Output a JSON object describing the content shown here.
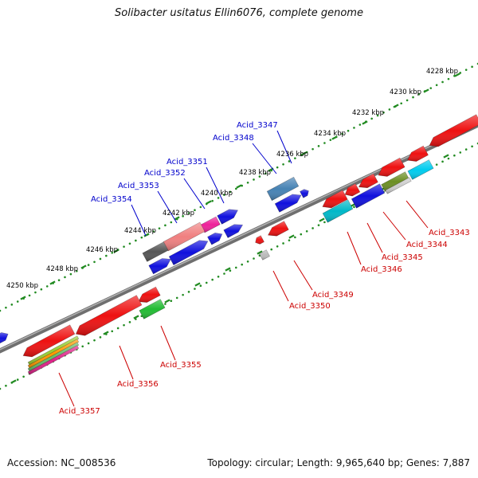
{
  "title": "Solibacter usitatus Ellin6076, complete genome",
  "footer": {
    "accession": "Accession: NC_008536",
    "summary": "Topology: circular; Length: 9,965,640 bp; Genes: 7,887"
  },
  "colors": {
    "backbone": "#808080",
    "tick_track": "#228b22",
    "forward_label": "#0000cc",
    "reverse_label": "#cc0000"
  },
  "scale_ticks": [
    {
      "label": "4228 kbp"
    },
    {
      "label": "4230 kbp"
    },
    {
      "label": "4232 kbp"
    },
    {
      "label": "4234 kbp"
    },
    {
      "label": "4236 kbp"
    },
    {
      "label": "4238 kbp"
    },
    {
      "label": "4240 kbp"
    },
    {
      "label": "4242 kbp"
    },
    {
      "label": "4244 kbp"
    },
    {
      "label": "4246 kbp"
    },
    {
      "label": "4248 kbp"
    },
    {
      "label": "4250 kbp"
    }
  ],
  "gene_labels_forward": [
    {
      "name": "Acid_3347"
    },
    {
      "name": "Acid_3348"
    },
    {
      "name": "Acid_3351"
    },
    {
      "name": "Acid_3352"
    },
    {
      "name": "Acid_3353"
    },
    {
      "name": "Acid_3354"
    }
  ],
  "gene_labels_reverse": [
    {
      "name": "Acid_3343"
    },
    {
      "name": "Acid_3344"
    },
    {
      "name": "Acid_3345"
    },
    {
      "name": "Acid_3346"
    },
    {
      "name": "Acid_3349"
    },
    {
      "name": "Acid_3350"
    },
    {
      "name": "Acid_3355"
    },
    {
      "name": "Acid_3356"
    },
    {
      "name": "Acid_3357"
    }
  ]
}
